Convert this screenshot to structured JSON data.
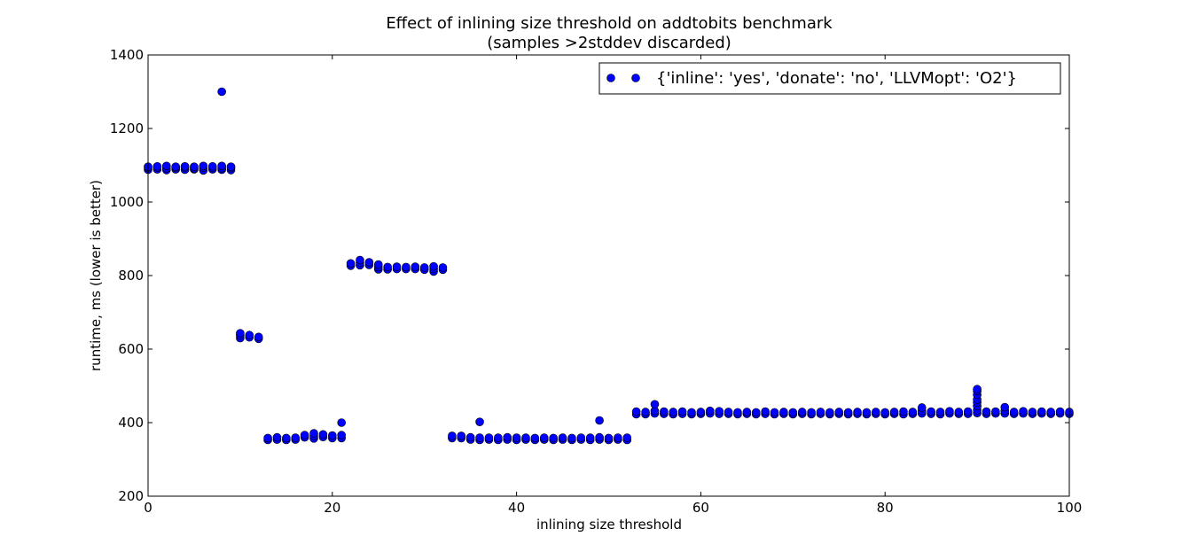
{
  "chart_data": {
    "type": "scatter",
    "title": "Effect of inlining size threshold on addtobits benchmark",
    "subtitle": "(samples >2stddev discarded)",
    "xlabel": "inlining size threshold",
    "ylabel": "runtime, ms (lower is better)",
    "xlim": [
      0,
      100
    ],
    "ylim": [
      200,
      1400
    ],
    "xticks": [
      0,
      20,
      40,
      60,
      80,
      100
    ],
    "yticks": [
      200,
      400,
      600,
      800,
      1000,
      1200,
      1400
    ],
    "grid": false,
    "legend_position": "top-right",
    "marker_color": "#0000ff",
    "series": [
      {
        "name": "{'inline': 'yes', 'donate': 'no', 'LLVMopt': 'O2'}",
        "points": [
          [
            0,
            1088
          ],
          [
            0,
            1093
          ],
          [
            0,
            1096
          ],
          [
            1,
            1089
          ],
          [
            1,
            1094
          ],
          [
            1,
            1097
          ],
          [
            2,
            1087
          ],
          [
            2,
            1092
          ],
          [
            2,
            1098
          ],
          [
            3,
            1089
          ],
          [
            3,
            1093
          ],
          [
            3,
            1096
          ],
          [
            4,
            1088
          ],
          [
            4,
            1094
          ],
          [
            4,
            1097
          ],
          [
            5,
            1089
          ],
          [
            5,
            1092
          ],
          [
            5,
            1096
          ],
          [
            6,
            1086
          ],
          [
            6,
            1093
          ],
          [
            6,
            1098
          ],
          [
            7,
            1089
          ],
          [
            7,
            1094
          ],
          [
            7,
            1097
          ],
          [
            8,
            1088
          ],
          [
            8,
            1092
          ],
          [
            8,
            1098
          ],
          [
            8,
            1300
          ],
          [
            9,
            1087
          ],
          [
            9,
            1093
          ],
          [
            9,
            1096
          ],
          [
            10,
            630
          ],
          [
            10,
            637
          ],
          [
            10,
            643
          ],
          [
            11,
            632
          ],
          [
            11,
            638
          ],
          [
            12,
            628
          ],
          [
            12,
            633
          ],
          [
            13,
            353
          ],
          [
            13,
            358
          ],
          [
            14,
            354
          ],
          [
            14,
            360
          ],
          [
            15,
            353
          ],
          [
            15,
            358
          ],
          [
            16,
            354
          ],
          [
            16,
            359
          ],
          [
            17,
            360
          ],
          [
            17,
            366
          ],
          [
            18,
            357
          ],
          [
            18,
            364
          ],
          [
            18,
            371
          ],
          [
            19,
            361
          ],
          [
            19,
            368
          ],
          [
            20,
            358
          ],
          [
            20,
            365
          ],
          [
            21,
            358
          ],
          [
            21,
            366
          ],
          [
            21,
            400
          ],
          [
            22,
            827
          ],
          [
            22,
            833
          ],
          [
            23,
            828
          ],
          [
            23,
            835
          ],
          [
            23,
            842
          ],
          [
            24,
            829
          ],
          [
            24,
            836
          ],
          [
            25,
            817
          ],
          [
            25,
            823
          ],
          [
            25,
            830
          ],
          [
            26,
            817
          ],
          [
            26,
            823
          ],
          [
            27,
            818
          ],
          [
            27,
            824
          ],
          [
            28,
            818
          ],
          [
            28,
            823
          ],
          [
            29,
            818
          ],
          [
            29,
            824
          ],
          [
            30,
            816
          ],
          [
            30,
            822
          ],
          [
            31,
            811
          ],
          [
            31,
            818
          ],
          [
            31,
            825
          ],
          [
            32,
            816
          ],
          [
            32,
            822
          ],
          [
            33,
            358
          ],
          [
            33,
            364
          ],
          [
            34,
            358
          ],
          [
            34,
            364
          ],
          [
            35,
            354
          ],
          [
            35,
            360
          ],
          [
            36,
            353
          ],
          [
            36,
            359
          ],
          [
            36,
            402
          ],
          [
            37,
            354
          ],
          [
            37,
            359
          ],
          [
            38,
            353
          ],
          [
            38,
            359
          ],
          [
            39,
            354
          ],
          [
            39,
            360
          ],
          [
            40,
            353
          ],
          [
            40,
            359
          ],
          [
            41,
            354
          ],
          [
            41,
            359
          ],
          [
            42,
            353
          ],
          [
            42,
            358
          ],
          [
            43,
            354
          ],
          [
            43,
            359
          ],
          [
            44,
            353
          ],
          [
            44,
            358
          ],
          [
            45,
            354
          ],
          [
            45,
            359
          ],
          [
            46,
            353
          ],
          [
            46,
            358
          ],
          [
            47,
            354
          ],
          [
            47,
            359
          ],
          [
            48,
            353
          ],
          [
            48,
            359
          ],
          [
            49,
            354
          ],
          [
            49,
            360
          ],
          [
            49,
            406
          ],
          [
            50,
            353
          ],
          [
            50,
            358
          ],
          [
            51,
            354
          ],
          [
            51,
            359
          ],
          [
            52,
            353
          ],
          [
            52,
            359
          ],
          [
            53,
            423
          ],
          [
            53,
            430
          ],
          [
            54,
            423
          ],
          [
            54,
            429
          ],
          [
            55,
            425
          ],
          [
            55,
            432
          ],
          [
            55,
            450
          ],
          [
            56,
            424
          ],
          [
            56,
            430
          ],
          [
            57,
            423
          ],
          [
            57,
            429
          ],
          [
            58,
            424
          ],
          [
            58,
            430
          ],
          [
            59,
            423
          ],
          [
            59,
            428
          ],
          [
            60,
            424
          ],
          [
            60,
            429
          ],
          [
            61,
            425
          ],
          [
            61,
            432
          ],
          [
            62,
            424
          ],
          [
            62,
            431
          ],
          [
            63,
            424
          ],
          [
            63,
            429
          ],
          [
            64,
            423
          ],
          [
            64,
            428
          ],
          [
            65,
            424
          ],
          [
            65,
            429
          ],
          [
            66,
            423
          ],
          [
            66,
            428
          ],
          [
            67,
            424
          ],
          [
            67,
            430
          ],
          [
            68,
            423
          ],
          [
            68,
            428
          ],
          [
            69,
            424
          ],
          [
            69,
            429
          ],
          [
            70,
            423
          ],
          [
            70,
            428
          ],
          [
            71,
            424
          ],
          [
            71,
            429
          ],
          [
            72,
            423
          ],
          [
            72,
            428
          ],
          [
            73,
            424
          ],
          [
            73,
            429
          ],
          [
            74,
            423
          ],
          [
            74,
            428
          ],
          [
            75,
            424
          ],
          [
            75,
            429
          ],
          [
            76,
            423
          ],
          [
            76,
            428
          ],
          [
            77,
            424
          ],
          [
            77,
            429
          ],
          [
            78,
            423
          ],
          [
            78,
            428
          ],
          [
            79,
            424
          ],
          [
            79,
            429
          ],
          [
            80,
            423
          ],
          [
            80,
            428
          ],
          [
            81,
            424
          ],
          [
            81,
            429
          ],
          [
            82,
            423
          ],
          [
            82,
            430
          ],
          [
            83,
            424
          ],
          [
            83,
            429
          ],
          [
            84,
            425
          ],
          [
            84,
            432
          ],
          [
            84,
            441
          ],
          [
            85,
            424
          ],
          [
            85,
            430
          ],
          [
            86,
            423
          ],
          [
            86,
            429
          ],
          [
            87,
            425
          ],
          [
            87,
            431
          ],
          [
            88,
            424
          ],
          [
            88,
            429
          ],
          [
            89,
            424
          ],
          [
            89,
            430
          ],
          [
            90,
            426
          ],
          [
            90,
            434
          ],
          [
            90,
            445
          ],
          [
            90,
            455
          ],
          [
            90,
            463
          ],
          [
            90,
            476
          ],
          [
            90,
            486
          ],
          [
            90,
            491
          ],
          [
            91,
            424
          ],
          [
            91,
            430
          ],
          [
            92,
            425
          ],
          [
            92,
            430
          ],
          [
            93,
            425
          ],
          [
            93,
            432
          ],
          [
            93,
            442
          ],
          [
            94,
            424
          ],
          [
            94,
            429
          ],
          [
            95,
            425
          ],
          [
            95,
            431
          ],
          [
            96,
            424
          ],
          [
            96,
            429
          ],
          [
            97,
            425
          ],
          [
            97,
            430
          ],
          [
            98,
            424
          ],
          [
            98,
            429
          ],
          [
            99,
            425
          ],
          [
            99,
            430
          ],
          [
            100,
            424
          ],
          [
            100,
            429
          ]
        ]
      }
    ]
  }
}
